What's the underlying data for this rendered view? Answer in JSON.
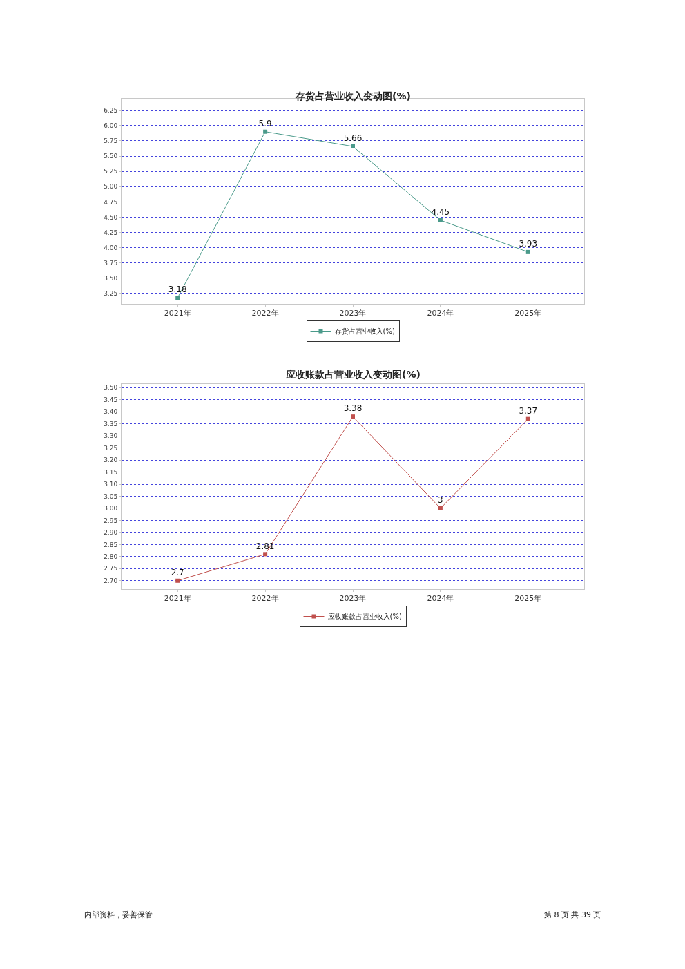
{
  "chart_data": [
    {
      "type": "line",
      "title": "存货占营业收入变动图(%)",
      "categories": [
        "2021年",
        "2022年",
        "2023年",
        "2024年",
        "2025年"
      ],
      "series": [
        {
          "name": "存货占营业收入(%)",
          "color": "#4a9a8a",
          "values": [
            3.18,
            5.9,
            5.66,
            4.45,
            3.93
          ]
        }
      ],
      "ylim": [
        3.08,
        6.44
      ],
      "yticks": [
        {
          "value": 3.25,
          "label": "3.25"
        },
        {
          "value": 3.5,
          "label": "3.50"
        },
        {
          "value": 3.75,
          "label": "3.75"
        },
        {
          "value": 4.0,
          "label": "4.00"
        },
        {
          "value": 4.25,
          "label": "4.25"
        },
        {
          "value": 4.5,
          "label": "4.50"
        },
        {
          "value": 4.75,
          "label": "4.75"
        },
        {
          "value": 5.0,
          "label": "5.00"
        },
        {
          "value": 5.25,
          "label": "5.25"
        },
        {
          "value": 5.5,
          "label": "5.50"
        },
        {
          "value": 5.75,
          "label": "5.75"
        },
        {
          "value": 6.0,
          "label": "6.00"
        },
        {
          "value": 6.25,
          "label": "6.25"
        }
      ],
      "grid": "y",
      "legend": "bottom",
      "marker": "square",
      "line_style": "solid",
      "data_labels": true
    },
    {
      "type": "line",
      "title": "应收账款占营业收入变动图(%)",
      "categories": [
        "2021年",
        "2022年",
        "2023年",
        "2024年",
        "2025年"
      ],
      "series": [
        {
          "name": "应收账款占营业收入(%)",
          "color": "#c0504d",
          "values": [
            2.7,
            2.81,
            3.38,
            3.0,
            3.37
          ],
          "value_labels": [
            "2.7",
            "2.81",
            "3.38",
            "3",
            "3.37"
          ]
        }
      ],
      "ylim": [
        2.665,
        3.515
      ],
      "yticks": [
        {
          "value": 2.7,
          "label": "2.70"
        },
        {
          "value": 2.75,
          "label": "2.75"
        },
        {
          "value": 2.8,
          "label": "2.80"
        },
        {
          "value": 2.85,
          "label": "2.85"
        },
        {
          "value": 2.9,
          "label": "2.90"
        },
        {
          "value": 2.95,
          "label": "2.95"
        },
        {
          "value": 3.0,
          "label": "3.00"
        },
        {
          "value": 3.05,
          "label": "3.05"
        },
        {
          "value": 3.1,
          "label": "3.10"
        },
        {
          "value": 3.15,
          "label": "3.15"
        },
        {
          "value": 3.2,
          "label": "3.20"
        },
        {
          "value": 3.25,
          "label": "3.25"
        },
        {
          "value": 3.3,
          "label": "3.30"
        },
        {
          "value": 3.35,
          "label": "3.35"
        },
        {
          "value": 3.4,
          "label": "3.40"
        },
        {
          "value": 3.45,
          "label": "3.45"
        },
        {
          "value": 3.5,
          "label": "3.50"
        }
      ],
      "grid": "y",
      "legend": "bottom",
      "marker": "square",
      "line_style": "solid",
      "annotations": [
        "内部资料，妥善保管",
        "第 8 页 共 39 页"
      ]
    }
  ]
}
